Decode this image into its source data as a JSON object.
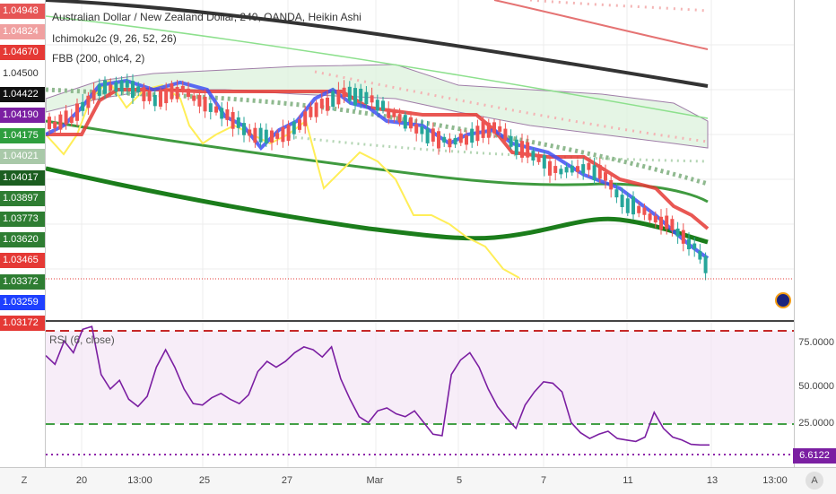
{
  "header": {
    "title": "Australian Dollar / New Zealand Dollar, 240, OANDA, Heikin Ashi",
    "indicators": [
      "Ichimoku2c (9, 26, 52, 26)",
      "FBB (200, ohlc4, 2)"
    ]
  },
  "left_price_labels": [
    {
      "text": "1.04948",
      "color": "#e65555"
    },
    {
      "text": "1.04824",
      "color": "#f0a0a0"
    },
    {
      "text": "1.04670",
      "color": "#e53935"
    },
    {
      "text": "1.04500",
      "color": "#ffffff"
    },
    {
      "text": "1.04422",
      "color": "#111111"
    },
    {
      "text": "1.04190",
      "color": "#7b1fa2"
    },
    {
      "text": "1.04175",
      "color": "#2e9e3e"
    },
    {
      "text": "1.04021",
      "color": "#a9c9a9"
    },
    {
      "text": "1.04017",
      "color": "#1b5e20"
    },
    {
      "text": "1.03897",
      "color": "#2e7d32"
    },
    {
      "text": "1.03773",
      "color": "#2e7d32"
    },
    {
      "text": "1.03620",
      "color": "#2e7d32"
    },
    {
      "text": "1.03465",
      "color": "#e53935"
    },
    {
      "text": "1.03372",
      "color": "#2e7d32"
    },
    {
      "text": "1.03259",
      "color": "#1e40ff"
    },
    {
      "text": "1.03172",
      "color": "#e53935"
    }
  ],
  "rsi": {
    "legend": "RSI (6, close)",
    "current_value": "6.6122",
    "scale": [
      "75.0000",
      "50.0000",
      "25.0000"
    ],
    "values": [
      68,
      62,
      78,
      70,
      86,
      88,
      55,
      45,
      51,
      38,
      33,
      40,
      60,
      72,
      60,
      45,
      35,
      34,
      39,
      42,
      38,
      35,
      41,
      57,
      64,
      60,
      64,
      70,
      74,
      72,
      67,
      74,
      52,
      38,
      26,
      22,
      30,
      32,
      28,
      26,
      30,
      22,
      14,
      13,
      55,
      65,
      70,
      60,
      45,
      33,
      25,
      18,
      34,
      43,
      50,
      49,
      43,
      22,
      15,
      11,
      14,
      16,
      11,
      10,
      9,
      12,
      29,
      18,
      12,
      10,
      7,
      6.6,
      6.6
    ]
  },
  "time_axis": {
    "ticks": [
      "20",
      "13:00",
      "25",
      "27",
      "Mar",
      "5",
      "7",
      "11",
      "13",
      "13:00"
    ],
    "left_button": "Z",
    "right_button": "A"
  },
  "colors": {
    "candle_up": "#26a69a",
    "candle_down": "#ef5350",
    "tenkan": "#2962ff",
    "kijun": "#e53935",
    "chikou": "#ffeb3b",
    "fbb_mid": "#1b7d1b",
    "rsi_line": "#7b1fa2"
  }
}
